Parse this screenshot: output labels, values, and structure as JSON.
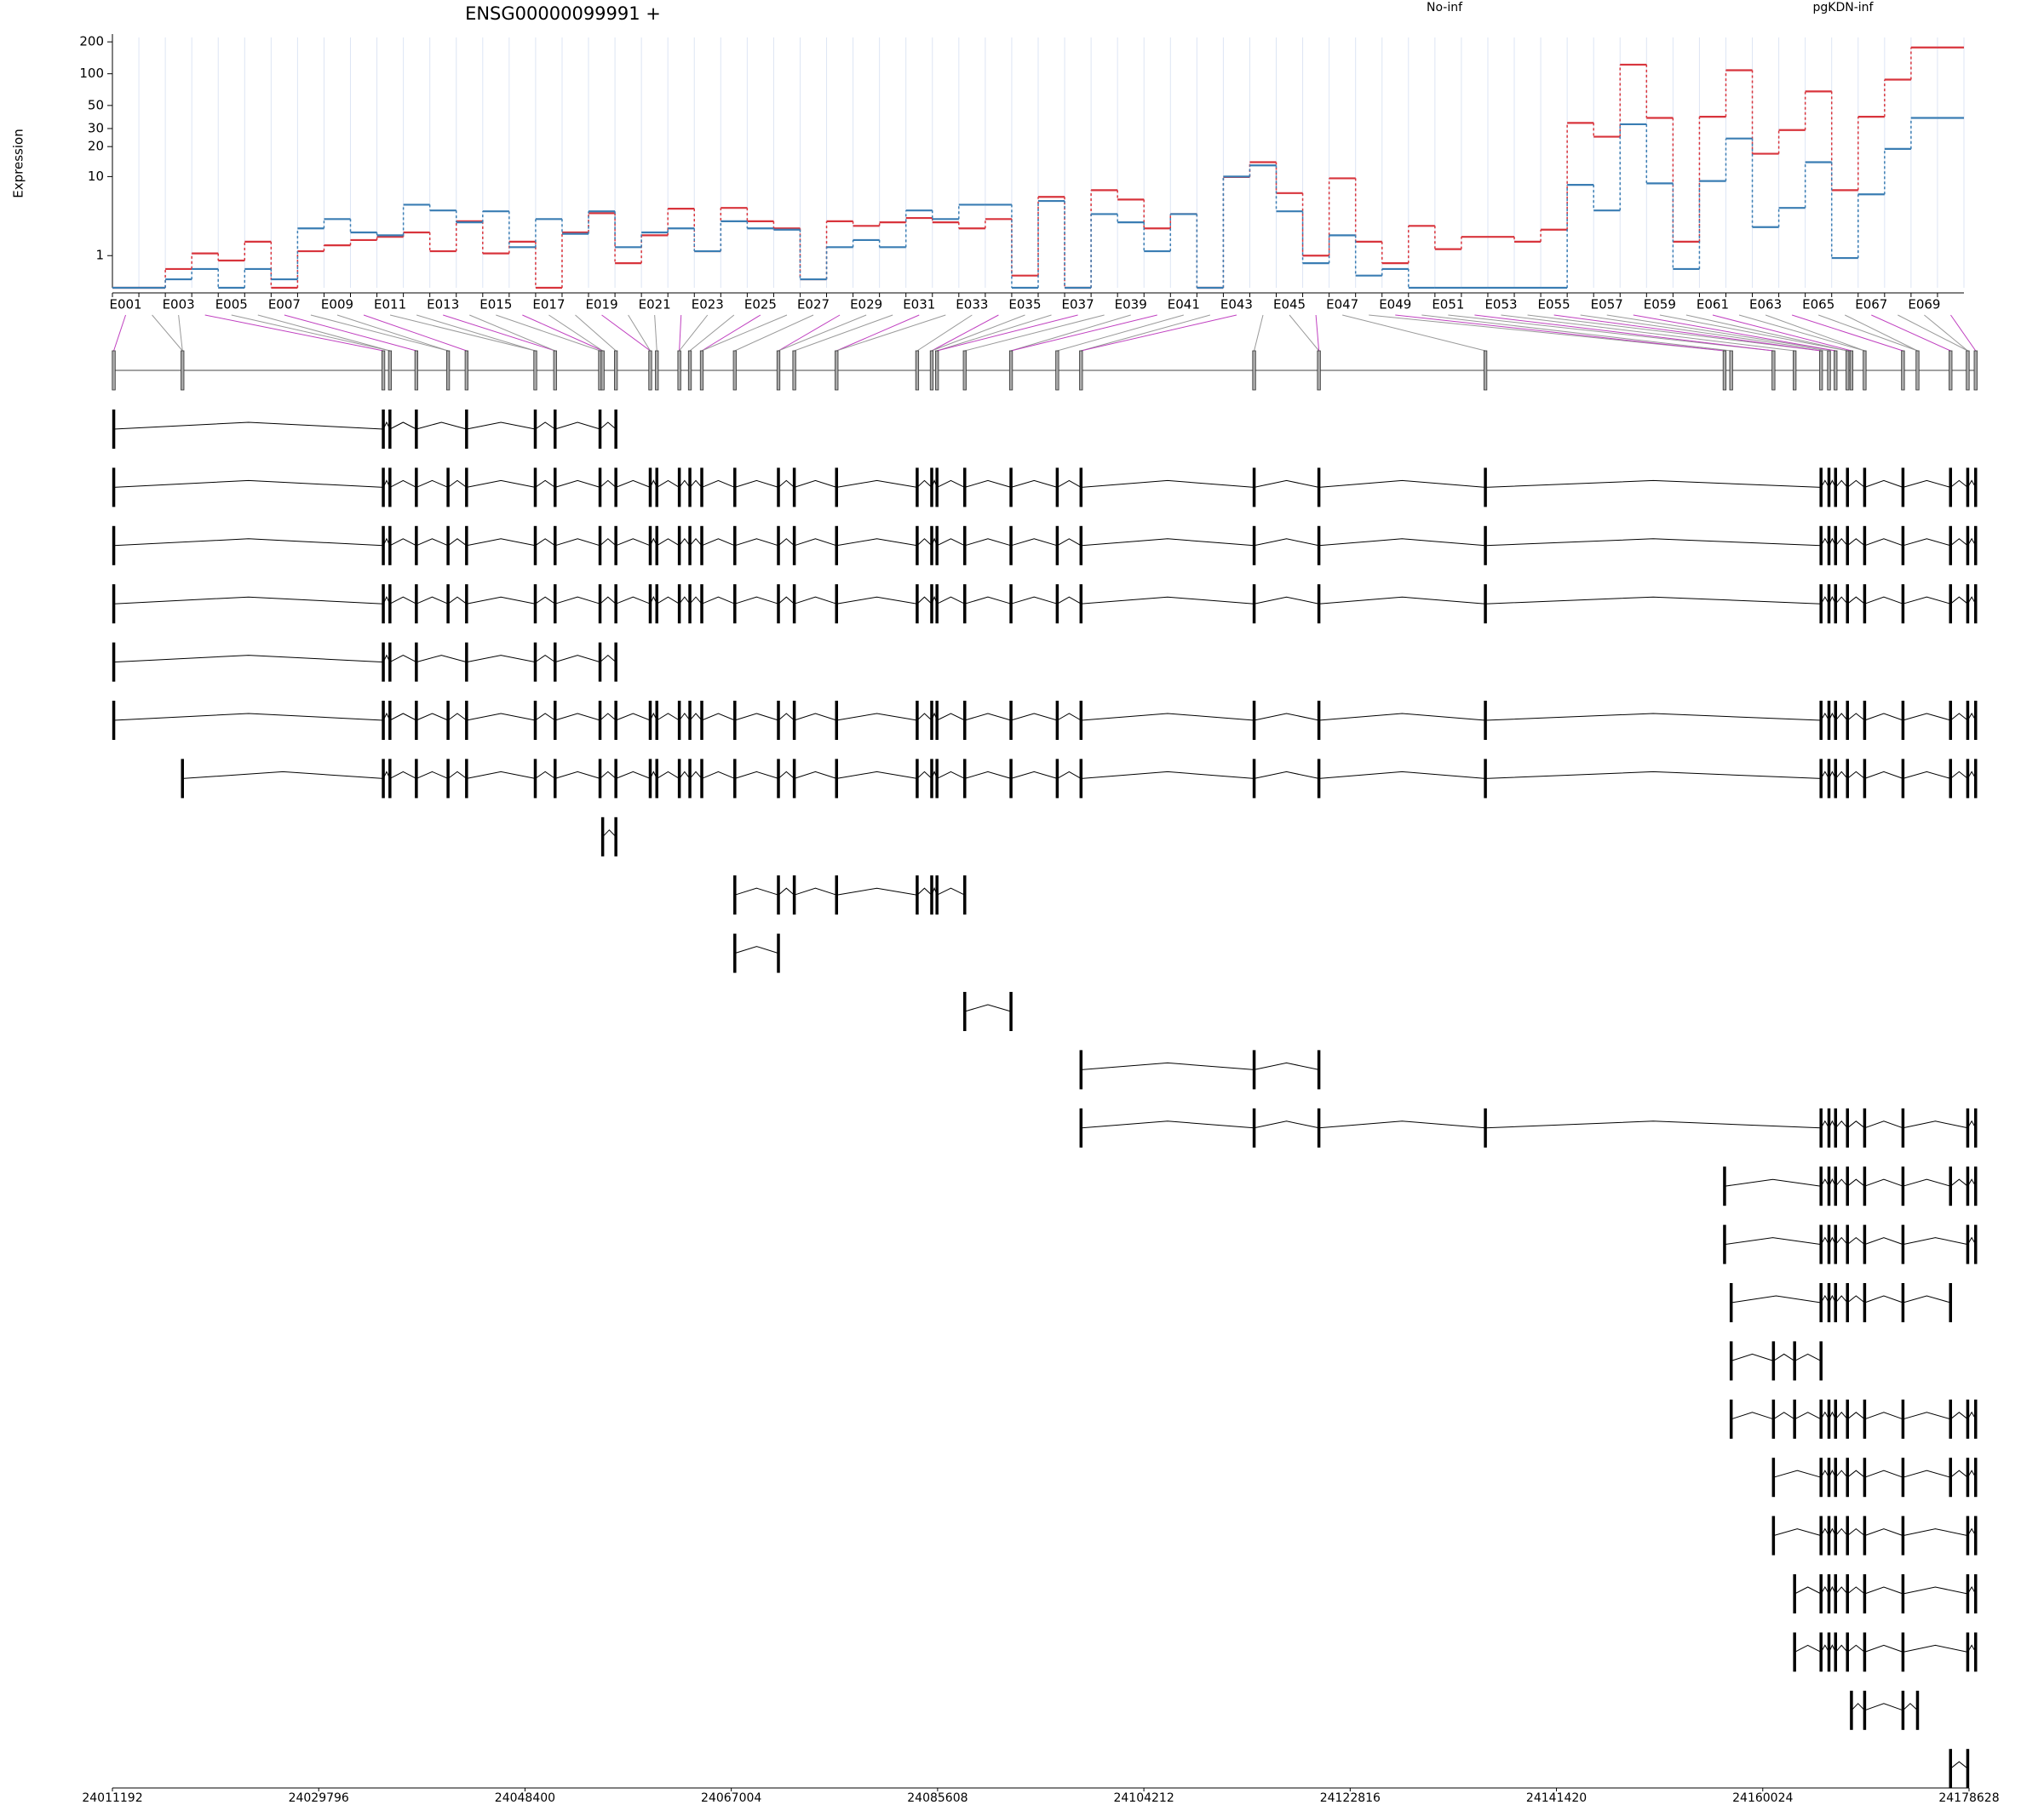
{
  "chart_data": [
    {
      "type": "line",
      "title": "ENSG00000099991 +",
      "y_label": "Expression",
      "yscale": "log10(x+1)",
      "ylim": [
        0,
        220
      ],
      "yticks": [
        1,
        10,
        20,
        30,
        50,
        100,
        200
      ],
      "grid": true,
      "legend": "top",
      "categories": [
        "E001",
        null,
        "E003",
        null,
        "E005",
        null,
        "E007",
        null,
        "E009",
        null,
        "E011",
        null,
        "E013",
        null,
        "E015",
        null,
        "E017",
        null,
        "E019",
        null,
        "E021",
        null,
        "E023",
        null,
        "E025",
        null,
        "E027",
        null,
        "E029",
        null,
        "E031",
        null,
        "E033",
        null,
        "E035",
        null,
        "E037",
        null,
        "E039",
        null,
        "E041",
        null,
        "E043",
        null,
        "E045",
        null,
        "E047",
        null,
        "E049",
        null,
        "E051",
        null,
        "E053",
        null,
        "E055",
        null,
        "E057",
        null,
        "E059",
        null,
        "E061",
        null,
        "E063",
        null,
        "E065",
        null,
        "E067",
        null,
        "E069",
        null
      ],
      "series": [
        {
          "name": "No-inf",
          "color": "#d8343c",
          "values": [
            0,
            0,
            0.5,
            1.1,
            0.8,
            1.7,
            0,
            1.2,
            1.5,
            1.8,
            2.0,
            2.3,
            1.2,
            3.2,
            1.1,
            1.7,
            0,
            2.3,
            4.0,
            0.7,
            2.1,
            4.5,
            1.2,
            4.6,
            3.2,
            2.6,
            0.2,
            3.2,
            2.8,
            3.1,
            3.5,
            3.1,
            2.6,
            3.4,
            0.3,
            6.1,
            0,
            7.2,
            5.7,
            2.6,
            3.9,
            0,
            9.9,
            14,
            6.7,
            1.0,
            9.6,
            1.7,
            0.7,
            2.8,
            1.3,
            2.0,
            2.0,
            1.7,
            2.5,
            34,
            25,
            122,
            38,
            1.7,
            39,
            108,
            17,
            29,
            68,
            7.2,
            39,
            88,
            177,
            177
          ]
        },
        {
          "name": "pgKDN-inf",
          "color": "#3a7db3",
          "values": [
            0,
            0,
            0.2,
            0.5,
            0,
            0.5,
            0.2,
            2.6,
            3.4,
            2.3,
            2.1,
            5.0,
            4.3,
            3.1,
            4.2,
            1.4,
            3.4,
            2.2,
            4.2,
            1.4,
            2.3,
            2.6,
            1.2,
            3.2,
            2.6,
            2.5,
            0.2,
            1.4,
            1.8,
            1.4,
            4.3,
            3.4,
            5.0,
            5.0,
            0,
            5.5,
            0,
            3.9,
            3.1,
            1.2,
            3.9,
            0,
            10,
            13,
            4.2,
            0.7,
            2.1,
            0.3,
            0.5,
            0,
            0,
            0,
            0,
            0,
            0,
            8.2,
            4.3,
            33,
            8.5,
            0.5,
            9.0,
            24,
            2.7,
            4.6,
            14,
            0.9,
            6.5,
            19,
            38,
            38
          ]
        }
      ]
    },
    {
      "type": "genemodel",
      "xlim": [
        24011192,
        24178628
      ],
      "xticks": [
        24011192,
        24029796,
        24048400,
        24067004,
        24085608,
        24104212,
        24122816,
        24141420,
        24160024,
        24178628
      ],
      "transcripts": [
        [
          24011311,
          24035622,
          24036218,
          24038601,
          24043130,
          24049326,
          24051114,
          24055166,
          24056596
        ],
        [
          24011311,
          24035622,
          24036218,
          24038601,
          24041461,
          24043130,
          24049326,
          24051114,
          24055166,
          24056596,
          24059694,
          24060290,
          24062316,
          24063269,
          24064342,
          24067321,
          24071254,
          24072684,
          24076497,
          24083767,
          24085078,
          24085554,
          24088057,
          24092228,
          24096399,
          24098544,
          24114155,
          24119995,
          24135010,
          24165279,
          24165994,
          24166590,
          24167663,
          24169212,
          24172668,
          24176958,
          24178508,
          24179223
        ],
        [
          24011311,
          24035622,
          24036218,
          24038601,
          24041461,
          24043130,
          24049326,
          24051114,
          24055166,
          24056596,
          24059694,
          24060290,
          24062316,
          24063269,
          24064342,
          24067321,
          24071254,
          24072684,
          24076497,
          24083767,
          24085078,
          24085554,
          24088057,
          24092228,
          24096399,
          24098544,
          24114155,
          24119995,
          24135010,
          24165279,
          24165994,
          24166590,
          24167663,
          24169212,
          24172668,
          24176958,
          24178508,
          24179223
        ],
        [
          24011311,
          24035622,
          24036218,
          24038601,
          24041461,
          24043130,
          24049326,
          24051114,
          24055166,
          24056596,
          24059694,
          24060290,
          24062316,
          24063269,
          24064342,
          24067321,
          24071254,
          24072684,
          24076497,
          24083767,
          24085078,
          24085554,
          24088057,
          24092228,
          24096399,
          24098544,
          24114155,
          24119995,
          24135010,
          24165279,
          24165994,
          24166590,
          24167663,
          24169212,
          24172668,
          24176958,
          24178508,
          24179223
        ],
        [
          24011311,
          24035622,
          24036218,
          24038601,
          24043130,
          24049326,
          24051114,
          24055166,
          24056596
        ],
        [
          24011311,
          24035622,
          24036218,
          24038601,
          24041461,
          24043130,
          24049326,
          24051114,
          24055166,
          24056596,
          24059694,
          24060290,
          24062316,
          24063269,
          24064342,
          24067321,
          24071254,
          24072684,
          24076497,
          24083767,
          24085078,
          24085554,
          24088057,
          24092228,
          24096399,
          24098544,
          24114155,
          24119995,
          24135010,
          24165279,
          24165994,
          24166590,
          24167663,
          24169212,
          24172668,
          24176958,
          24178508,
          24179223
        ],
        [
          24017508,
          24035622,
          24036218,
          24038601,
          24041461,
          24043130,
          24049326,
          24051114,
          24055166,
          24056596,
          24059694,
          24060290,
          24062316,
          24063269,
          24064342,
          24067321,
          24071254,
          24072684,
          24076497,
          24083767,
          24085078,
          24085554,
          24088057,
          24092228,
          24096399,
          24098544,
          24114155,
          24119995,
          24135010,
          24165279,
          24165994,
          24166590,
          24167663,
          24169212,
          24172668,
          24176958,
          24178508,
          24179223
        ],
        [
          24055404,
          24056596
        ],
        [
          24067321,
          24071254,
          24072684,
          24076497,
          24083767,
          24085078,
          24085554,
          24088057
        ],
        [
          24067321,
          24071254
        ],
        [
          24088057,
          24092228
        ],
        [
          24098544,
          24114155,
          24119995
        ],
        [
          24098544,
          24114155,
          24119995,
          24135010,
          24165279,
          24165994,
          24166590,
          24167663,
          24169212,
          24172668,
          24178508,
          24179223
        ],
        [
          24156580,
          24165279,
          24165994,
          24166590,
          24167663,
          24169212,
          24172668,
          24176958,
          24178508,
          24179223
        ],
        [
          24156580,
          24165279,
          24165994,
          24166590,
          24167663,
          24169212,
          24172668,
          24178508,
          24179223
        ],
        [
          24157176,
          24165279,
          24165994,
          24166590,
          24167663,
          24169212,
          24172668,
          24176958
        ],
        [
          24157176,
          24160989,
          24162896,
          24165279
        ],
        [
          24157176,
          24160989,
          24162896,
          24165279,
          24165994,
          24166590,
          24167663,
          24169212,
          24172668,
          24176958,
          24178508,
          24179223
        ],
        [
          24160989,
          24165279,
          24165994,
          24166590,
          24167663,
          24169212,
          24172668,
          24176958,
          24178508,
          24179223
        ],
        [
          24160989,
          24165279,
          24165994,
          24166590,
          24167663,
          24169212,
          24172668,
          24178508,
          24179223
        ],
        [
          24162896,
          24165279,
          24165994,
          24166590,
          24167663,
          24169212,
          24172668,
          24178508,
          24179223
        ],
        [
          24162896,
          24165279,
          24165994,
          24166590,
          24167663,
          24169212,
          24172668,
          24178508,
          24179223
        ],
        [
          24168021,
          24169212,
          24172668,
          24173979
        ],
        [
          24176958,
          24178508
        ]
      ]
    }
  ]
}
